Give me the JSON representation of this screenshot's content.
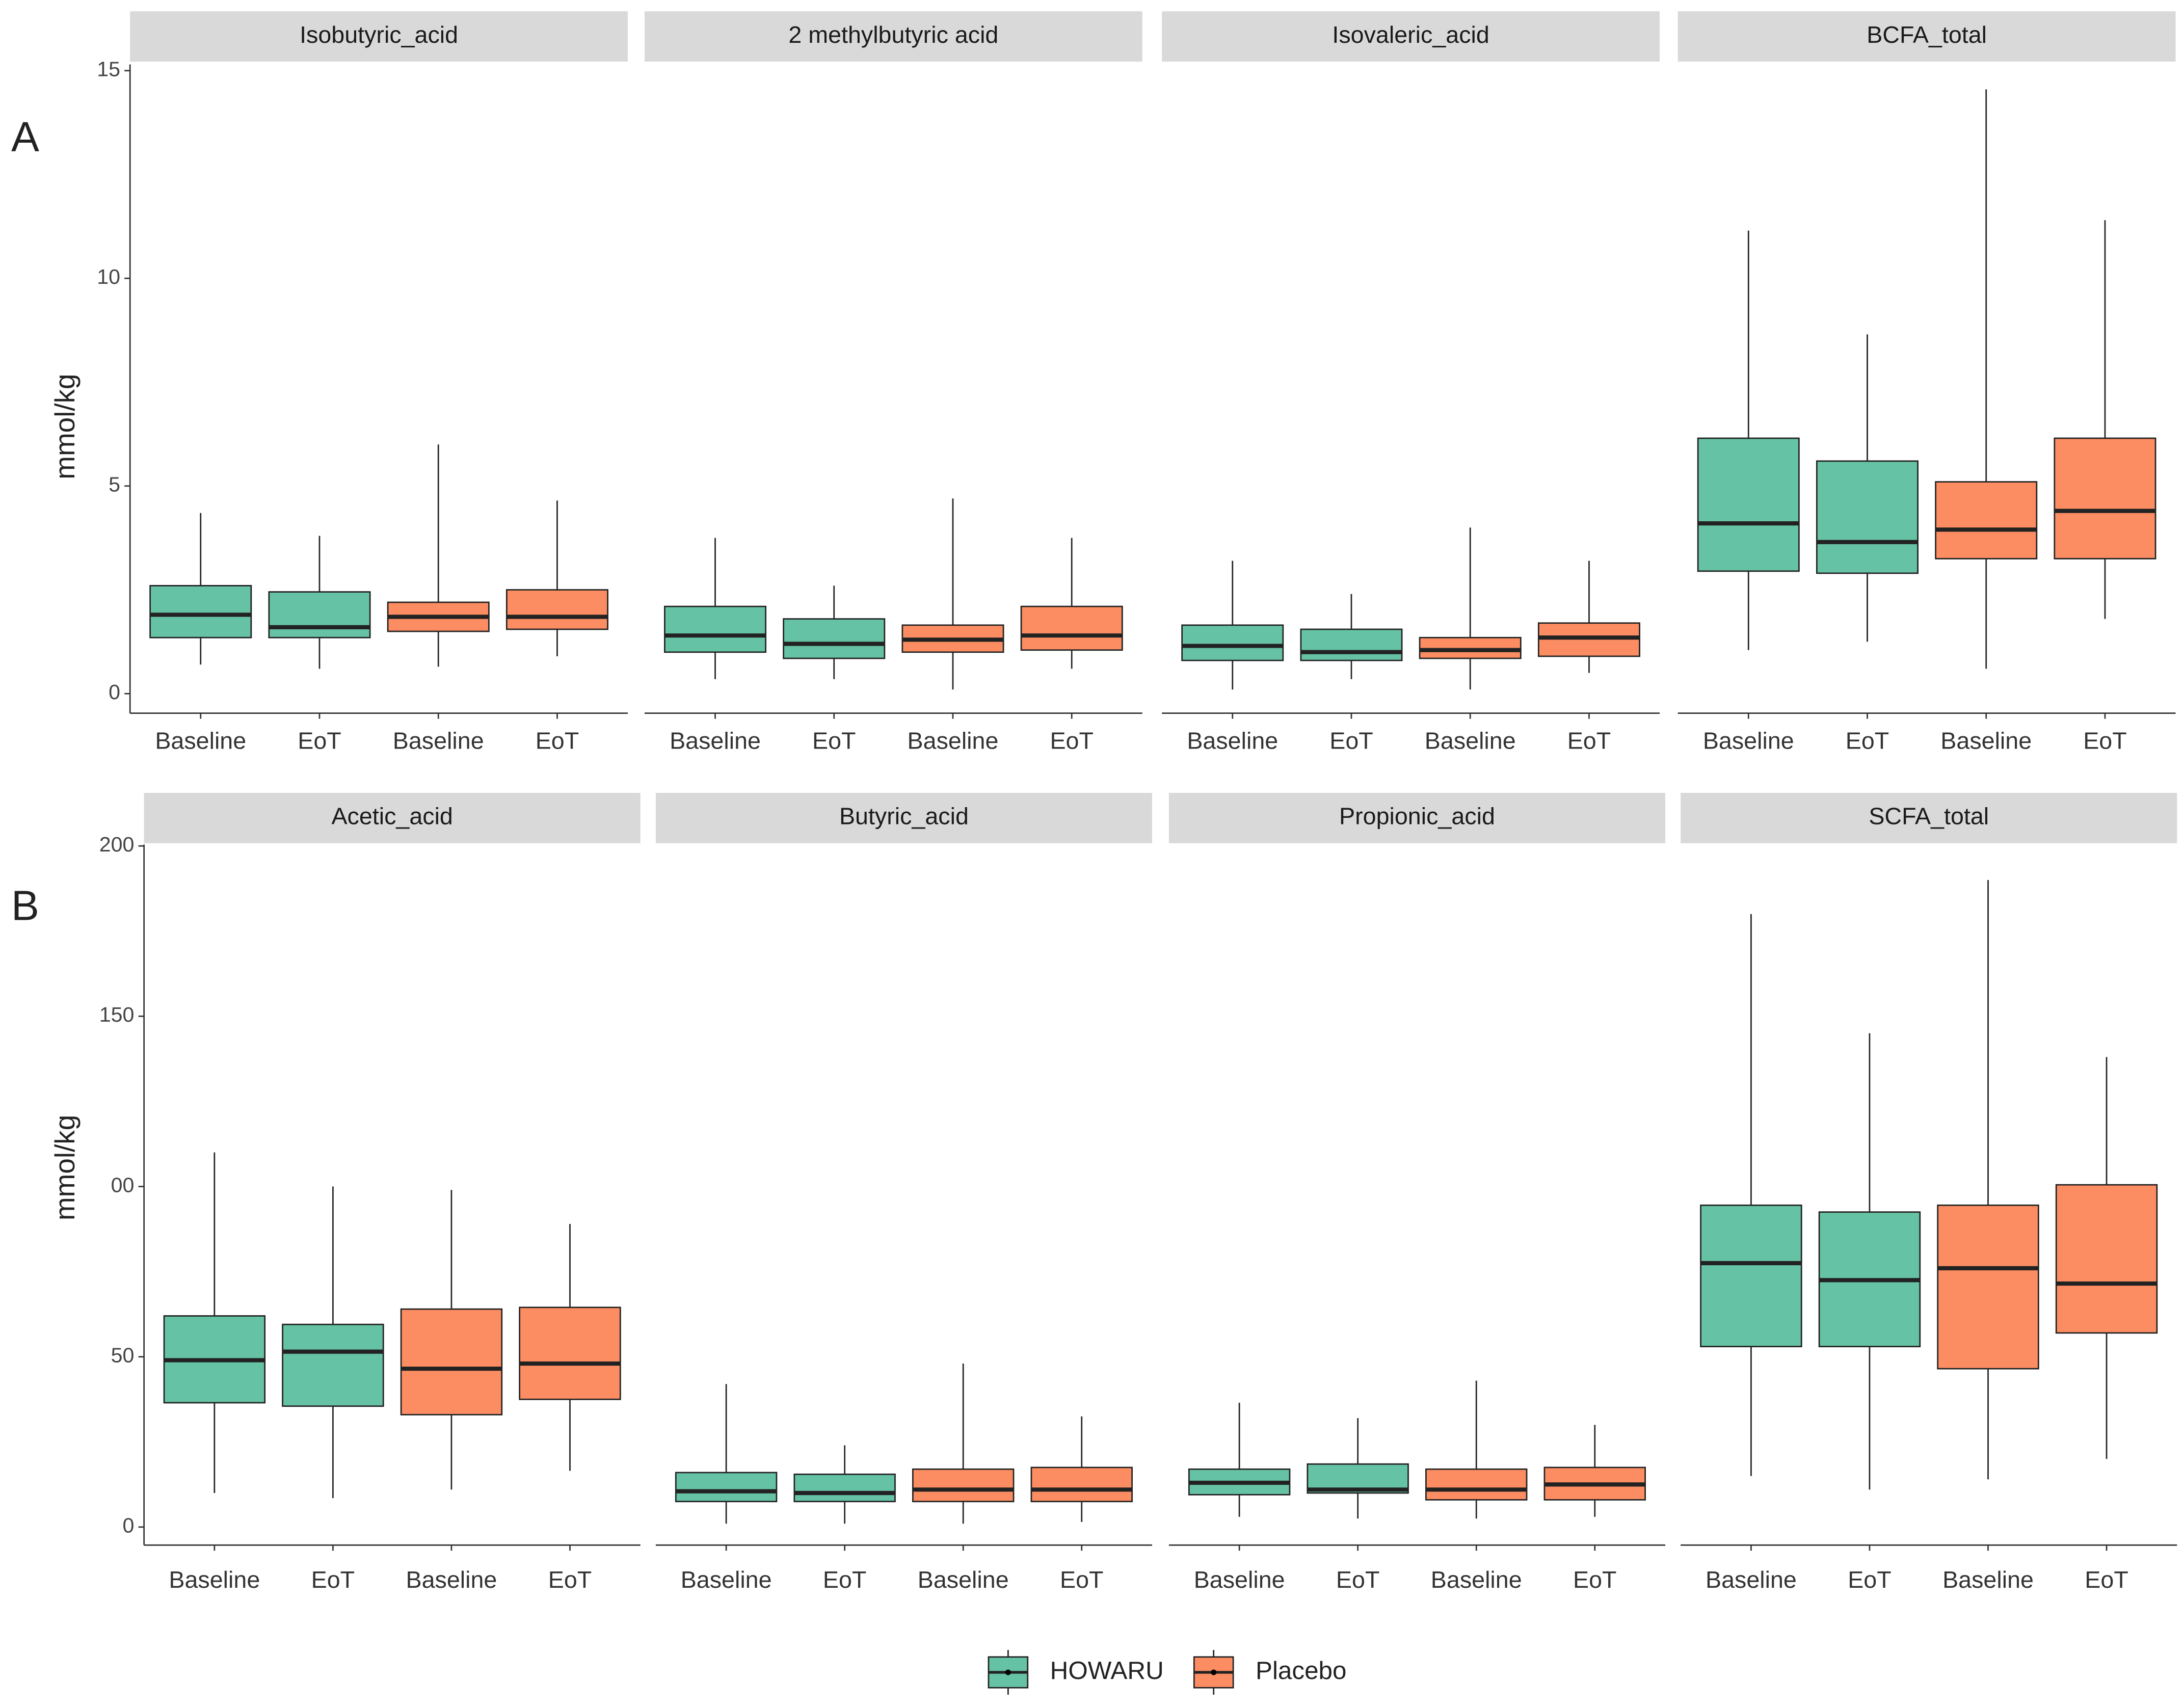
{
  "chart_data": [
    {
      "type": "box",
      "panel_label": "A",
      "ylabel": "mmol/kg",
      "ylim": [
        -0.47,
        15.15
      ],
      "yticks": [
        0,
        5,
        10,
        15
      ],
      "facets": [
        {
          "title": "Isobutyric_acid",
          "categories": [
            "Baseline",
            "EoT",
            "Baseline",
            "EoT"
          ],
          "boxes": [
            [
              {
                "min": 0.7,
                "q1": 1.35,
                "median": 1.9,
                "q3": 2.6,
                "max": 4.35
              },
              {
                "min": 0.6,
                "q1": 1.35,
                "median": 1.6,
                "q3": 2.45,
                "max": 3.8
              }
            ],
            [
              {
                "min": 0.65,
                "q1": 1.5,
                "median": 1.85,
                "q3": 2.2,
                "max": 6.0
              },
              {
                "min": 0.9,
                "q1": 1.55,
                "median": 1.85,
                "q3": 2.5,
                "max": 4.65
              }
            ]
          ]
        },
        {
          "title": "2 methylbutyric acid",
          "categories": [
            "Baseline",
            "EoT",
            "Baseline",
            "EoT"
          ],
          "boxes": [
            [
              {
                "min": 0.35,
                "q1": 1.0,
                "median": 1.4,
                "q3": 2.1,
                "max": 3.75
              },
              {
                "min": 0.35,
                "q1": 0.85,
                "median": 1.2,
                "q3": 1.8,
                "max": 2.6
              }
            ],
            [
              {
                "min": 0.1,
                "q1": 1.0,
                "median": 1.3,
                "q3": 1.65,
                "max": 4.7
              },
              {
                "min": 0.6,
                "q1": 1.05,
                "median": 1.4,
                "q3": 2.1,
                "max": 3.75
              }
            ]
          ]
        },
        {
          "title": "Isovaleric_acid",
          "categories": [
            "Baseline",
            "EoT",
            "Baseline",
            "EoT"
          ],
          "boxes": [
            [
              {
                "min": 0.1,
                "q1": 0.8,
                "median": 1.15,
                "q3": 1.65,
                "max": 3.2
              },
              {
                "min": 0.35,
                "q1": 0.8,
                "median": 1.0,
                "q3": 1.55,
                "max": 2.4
              }
            ],
            [
              {
                "min": 0.1,
                "q1": 0.85,
                "median": 1.05,
                "q3": 1.35,
                "max": 4.0
              },
              {
                "min": 0.5,
                "q1": 0.9,
                "median": 1.35,
                "q3": 1.7,
                "max": 3.2
              }
            ]
          ]
        },
        {
          "title": "BCFA_total",
          "categories": [
            "Baseline",
            "EoT",
            "Baseline",
            "EoT"
          ],
          "boxes": [
            [
              {
                "min": 1.05,
                "q1": 2.95,
                "median": 4.1,
                "q3": 6.15,
                "max": 11.15
              },
              {
                "min": 1.25,
                "q1": 2.9,
                "median": 3.65,
                "q3": 5.6,
                "max": 8.65
              }
            ],
            [
              {
                "min": 0.6,
                "q1": 3.25,
                "median": 3.95,
                "q3": 5.1,
                "max": 14.55
              },
              {
                "min": 1.8,
                "q1": 3.25,
                "median": 4.4,
                "q3": 6.15,
                "max": 11.4
              }
            ]
          ]
        }
      ]
    },
    {
      "type": "box",
      "panel_label": "B",
      "ylabel": "mmol/kg",
      "ylim": [
        -5.3,
        200.4
      ],
      "yticks": [
        0,
        50,
        {
          "value": 100,
          "label": "00"
        },
        150,
        200
      ],
      "facets": [
        {
          "title": "Acetic_acid",
          "categories": [
            "Baseline",
            "EoT",
            "Baseline",
            "EoT"
          ],
          "boxes": [
            [
              {
                "min": 10,
                "q1": 36.5,
                "median": 49,
                "q3": 62,
                "max": 110
              },
              {
                "min": 8.5,
                "q1": 35.5,
                "median": 51.5,
                "q3": 59.5,
                "max": 100
              }
            ],
            [
              {
                "min": 11,
                "q1": 33,
                "median": 46.5,
                "q3": 64,
                "max": 99
              },
              {
                "min": 16.5,
                "q1": 37.5,
                "median": 48,
                "q3": 64.5,
                "max": 89
              }
            ]
          ]
        },
        {
          "title": "Butyric_acid",
          "categories": [
            "Baseline",
            "EoT",
            "Baseline",
            "EoT"
          ],
          "boxes": [
            [
              {
                "min": 1,
                "q1": 7.5,
                "median": 10.5,
                "q3": 16,
                "max": 42
              },
              {
                "min": 1,
                "q1": 7.5,
                "median": 10,
                "q3": 15.5,
                "max": 24
              }
            ],
            [
              {
                "min": 1,
                "q1": 7.5,
                "median": 11,
                "q3": 17,
                "max": 48
              },
              {
                "min": 1.5,
                "q1": 7.5,
                "median": 11,
                "q3": 17.5,
                "max": 32.5
              }
            ]
          ]
        },
        {
          "title": "Propionic_acid",
          "categories": [
            "Baseline",
            "EoT",
            "Baseline",
            "EoT"
          ],
          "boxes": [
            [
              {
                "min": 3,
                "q1": 9.5,
                "median": 13,
                "q3": 17,
                "max": 36.5
              },
              {
                "min": 2.5,
                "q1": 10,
                "median": 11,
                "q3": 18.5,
                "max": 32
              }
            ],
            [
              {
                "min": 2.5,
                "q1": 8,
                "median": 11,
                "q3": 17,
                "max": 43
              },
              {
                "min": 3,
                "q1": 8,
                "median": 12.5,
                "q3": 17.5,
                "max": 30
              }
            ]
          ]
        },
        {
          "title": "SCFA_total",
          "categories": [
            "Baseline",
            "EoT",
            "Baseline",
            "EoT"
          ],
          "boxes": [
            [
              {
                "min": 15,
                "q1": 53,
                "median": 77.5,
                "q3": 94.5,
                "max": 180
              },
              {
                "min": 11,
                "q1": 53,
                "median": 72.5,
                "q3": 92.5,
                "max": 145
              }
            ],
            [
              {
                "min": 14,
                "q1": 46.5,
                "median": 76,
                "q3": 94.5,
                "max": 190
              },
              {
                "min": 20,
                "q1": 57,
                "median": 71.5,
                "q3": 100.5,
                "max": 138
              }
            ]
          ]
        }
      ]
    }
  ],
  "groups": [
    {
      "name": "HOWARU",
      "color": "#66c2a5"
    },
    {
      "name": "Placebo",
      "color": "#fc8d62"
    }
  ]
}
